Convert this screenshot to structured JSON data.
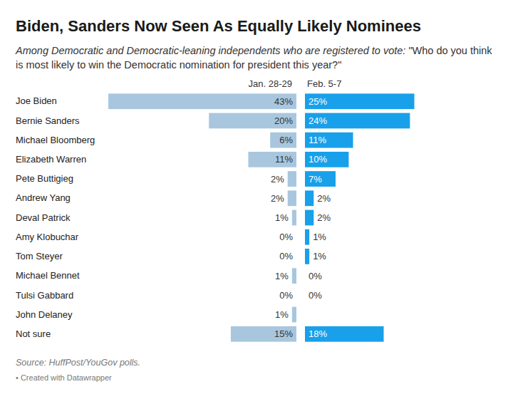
{
  "chart_data": {
    "type": "bar",
    "orientation": "horizontal",
    "title": "Biden, Sanders Now Seen As Equally Likely Nominees",
    "subtitle": "Among Democratic and Democratic-leaning independents who are registered to vote: \"Who do you think is most likely to win the Democratic nomination for president this year?\"",
    "source": "Source: HuffPost/YouGov polls.",
    "credit": "• Created with Datawrapper",
    "categories": [
      "Joe Biden",
      "Bernie Sanders",
      "Michael Bloomberg",
      "Elizabeth Warren",
      "Pete Buttigieg",
      "Andrew Yang",
      "Deval Patrick",
      "Amy Klobuchar",
      "Tom Steyer",
      "Michael Bennet",
      "Tulsi Gabbard",
      "John Delaney",
      "Not sure"
    ],
    "series": [
      {
        "name": "Jan. 28-29",
        "color": "#a8c7de",
        "values": [
          43,
          20,
          6,
          11,
          2,
          2,
          1,
          0,
          0,
          1,
          0,
          1,
          15
        ],
        "value_labels": [
          "43%",
          "20%",
          "6%",
          "11%",
          "2%",
          "2%",
          "1%",
          "0%",
          "0%",
          "1%",
          "0%",
          "1%",
          "15%"
        ]
      },
      {
        "name": "Feb. 5-7",
        "color": "#18a0ea",
        "values": [
          25,
          24,
          11,
          10,
          7,
          2,
          2,
          1,
          1,
          0,
          0,
          null,
          18
        ],
        "value_labels": [
          "25%",
          "24%",
          "11%",
          "10%",
          "7%",
          "2%",
          "2%",
          "1%",
          "1%",
          "0%",
          "0%",
          null,
          "18%"
        ]
      }
    ],
    "xlim": [
      0,
      43
    ],
    "data_labels": true,
    "tick_labels": "y"
  }
}
